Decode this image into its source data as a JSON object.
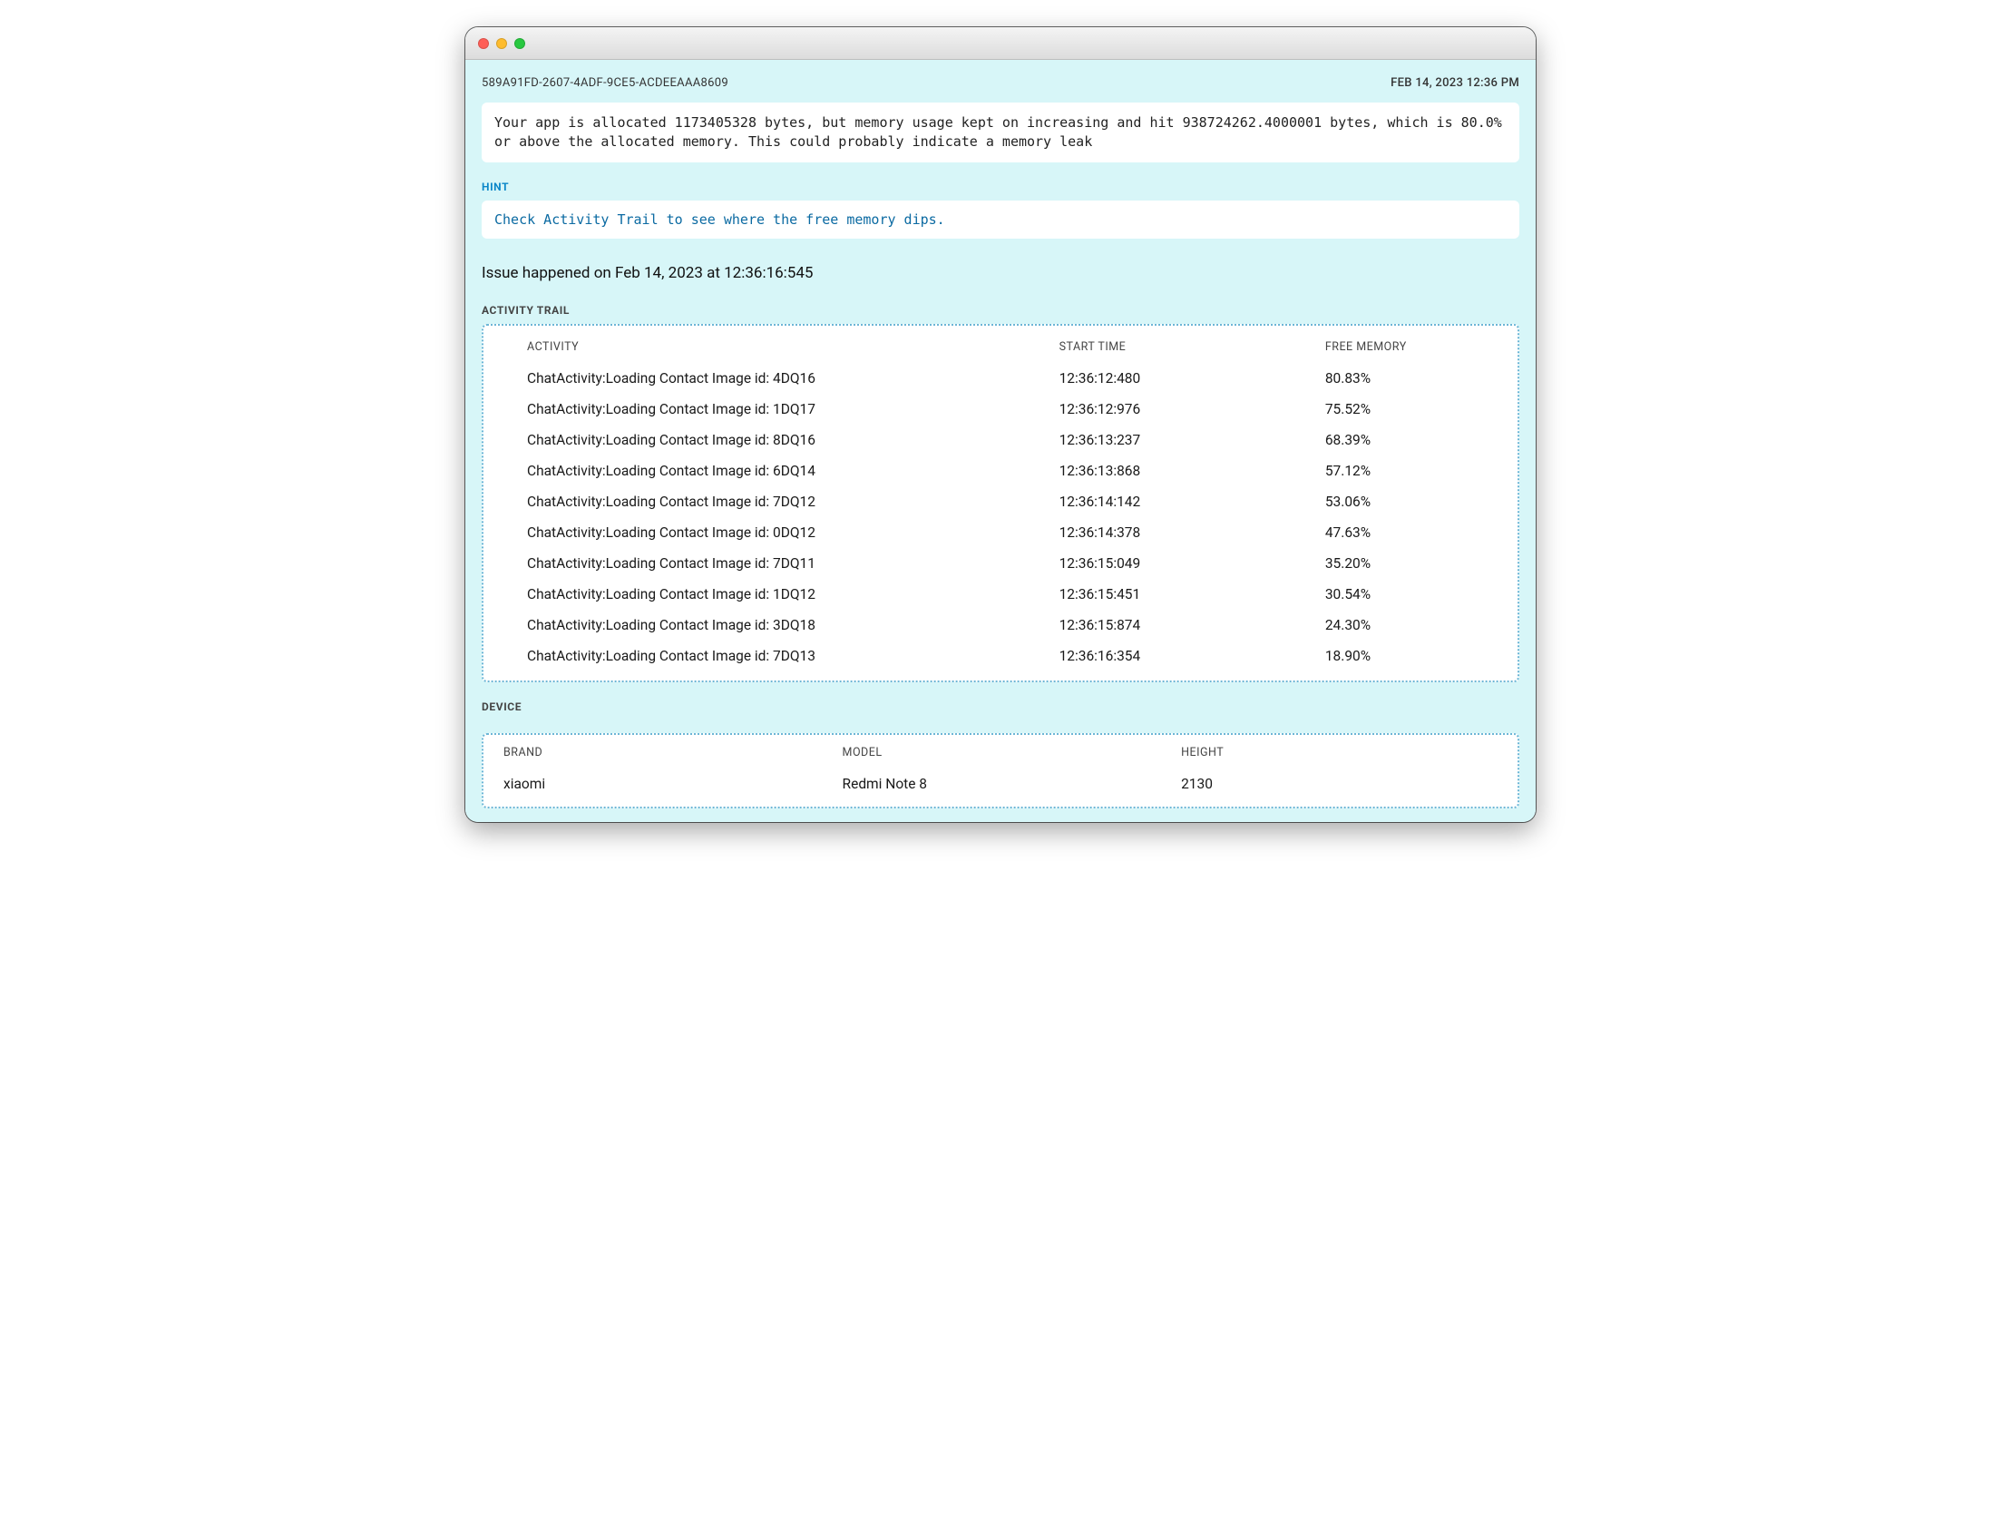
{
  "header": {
    "session_id": "589A91FD-2607-4ADF-9CE5-ACDEEAAA8609",
    "timestamp": "FEB 14, 2023 12:36 PM"
  },
  "message": {
    "text": "Your app is allocated 1173405328 bytes, but memory usage kept on increasing and hit 938724262.4000001 bytes, which is 80.0% or above the allocated memory. This could probably indicate a memory leak"
  },
  "hint": {
    "label": "HINT",
    "text": "Check Activity Trail to see where the free memory dips."
  },
  "issue_line": "Issue happened on Feb 14, 2023 at 12:36:16:545",
  "activity_trail": {
    "label": "ACTIVITY TRAIL",
    "columns": {
      "activity": "ACTIVITY",
      "start_time": "START TIME",
      "free_memory": "FREE MEMORY"
    },
    "rows": [
      {
        "activity": "ChatActivity:Loading Contact Image id: 4DQ16",
        "start_time": "12:36:12:480",
        "free_memory": "80.83%"
      },
      {
        "activity": "ChatActivity:Loading Contact Image id: 1DQ17",
        "start_time": "12:36:12:976",
        "free_memory": "75.52%"
      },
      {
        "activity": "ChatActivity:Loading Contact Image id: 8DQ16",
        "start_time": "12:36:13:237",
        "free_memory": "68.39%"
      },
      {
        "activity": "ChatActivity:Loading Contact Image id: 6DQ14",
        "start_time": "12:36:13:868",
        "free_memory": "57.12%"
      },
      {
        "activity": "ChatActivity:Loading Contact Image id: 7DQ12",
        "start_time": "12:36:14:142",
        "free_memory": "53.06%"
      },
      {
        "activity": "ChatActivity:Loading Contact Image id: 0DQ12",
        "start_time": "12:36:14:378",
        "free_memory": "47.63%"
      },
      {
        "activity": "ChatActivity:Loading Contact Image id: 7DQ11",
        "start_time": "12:36:15:049",
        "free_memory": "35.20%"
      },
      {
        "activity": "ChatActivity:Loading Contact Image id: 1DQ12",
        "start_time": "12:36:15:451",
        "free_memory": "30.54%"
      },
      {
        "activity": "ChatActivity:Loading Contact Image id: 3DQ18",
        "start_time": "12:36:15:874",
        "free_memory": "24.30%"
      },
      {
        "activity": "ChatActivity:Loading Contact Image id: 7DQ13",
        "start_time": "12:36:16:354",
        "free_memory": "18.90%"
      }
    ]
  },
  "device": {
    "label": "DEVICE",
    "columns": {
      "brand": "BRAND",
      "model": "MODEL",
      "height": "HEIGHT"
    },
    "row": {
      "brand": "xiaomi",
      "model": "Redmi Note 8",
      "height": "2130"
    }
  },
  "colors": {
    "page_background": "#d7f6f8",
    "panel_background": "#ffffff",
    "hint_label": "#0b87c9",
    "hint_text": "#0b6aa2",
    "dotted_border": "#6cb6d6",
    "text_primary": "#1a1a1a"
  }
}
